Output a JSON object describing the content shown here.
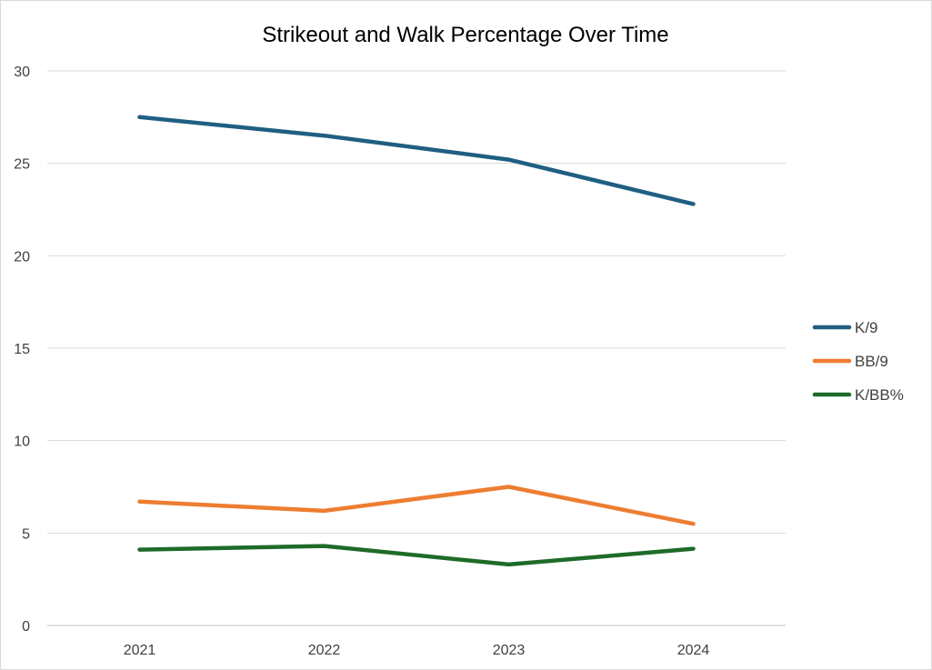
{
  "chart_data": {
    "type": "line",
    "title": "Strikeout and Walk Percentage Over Time",
    "xlabel": "",
    "ylabel": "",
    "categories": [
      "2021",
      "2022",
      "2023",
      "2024"
    ],
    "ylim": [
      0,
      30
    ],
    "yticks": [
      "0",
      "5",
      "10",
      "15",
      "20",
      "25",
      "30"
    ],
    "grid": true,
    "legend_position": "right",
    "series": [
      {
        "name": "K/9",
        "values": [
          27.5,
          26.5,
          25.2,
          22.8
        ],
        "color": "#1f5f82"
      },
      {
        "name": "BB/9",
        "values": [
          6.7,
          6.2,
          7.5,
          5.5
        ],
        "color": "#ed7d31"
      },
      {
        "name": "K/BB%",
        "values": [
          4.1,
          4.3,
          3.3,
          4.15
        ],
        "color": "#1e6b28"
      }
    ]
  }
}
